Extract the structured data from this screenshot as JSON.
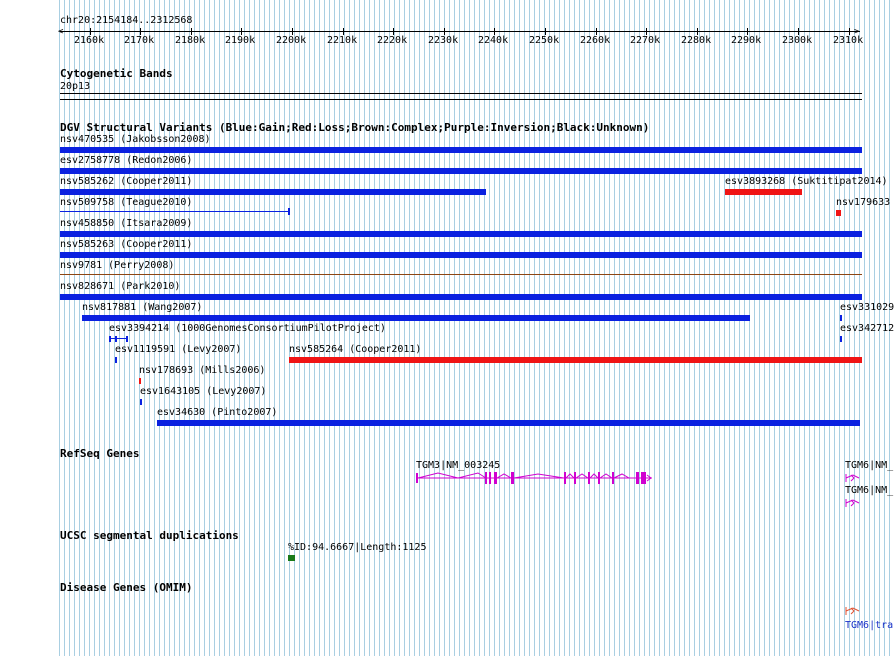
{
  "ruler": {
    "range": "chr20:2154184..2312568",
    "ticks": [
      "2160k",
      "2170k",
      "2180k",
      "2190k",
      "2200k",
      "2210k",
      "2220k",
      "2230k",
      "2240k",
      "2250k",
      "2260k",
      "2270k",
      "2280k",
      "2290k",
      "2300k",
      "2310k"
    ]
  },
  "cytogenetic": {
    "title": "Cytogenetic Bands",
    "band": "20p13"
  },
  "dgv": {
    "title": "DGV Structural Variants (Blue:Gain;Red:Loss;Brown:Complex;Purple:Inversion;Black:Unknown)",
    "variants": [
      "nsv470535 (Jakobsson2008)",
      "esv2758778 (Redon2006)",
      "nsv585262 (Cooper2011)",
      "esv3893268 (Suktitipat2014)",
      "nsv509758 (Teague2010)",
      "nsv179633",
      "nsv458850 (Itsara2009)",
      "nsv585263 (Cooper2011)",
      "nsv9781 (Perry2008)",
      "nsv828671 (Park2010)",
      "nsv817881 (Wang2007)",
      "esv331029",
      "esv3394214 (1000GenomesConsortiumPilotProject)",
      "esv342712",
      "esv1119591 (Levy2007)",
      "nsv585264 (Cooper2011)",
      "nsv178693 (Mills2006)",
      "esv1643105 (Levy2007)",
      "esv34630 (Pinto2007)"
    ]
  },
  "refseq": {
    "title": "RefSeq Genes",
    "genes": [
      "TGM3|NM_003245",
      "TGM6|NM_",
      "TGM6|NM_"
    ]
  },
  "segdup": {
    "title": "UCSC segmental duplications",
    "label": "%ID:94.6667|Length:1125"
  },
  "omim": {
    "title": "Disease Genes (OMIM)",
    "label": "TGM6|tra"
  },
  "colors": {
    "gain": "#0b21e0",
    "loss": "#f01414",
    "complex": "#8b4513",
    "gene": "#d000d0",
    "segdup": "#1a7a1a",
    "omim": "#e05030",
    "grid": "#a9cfe2"
  }
}
